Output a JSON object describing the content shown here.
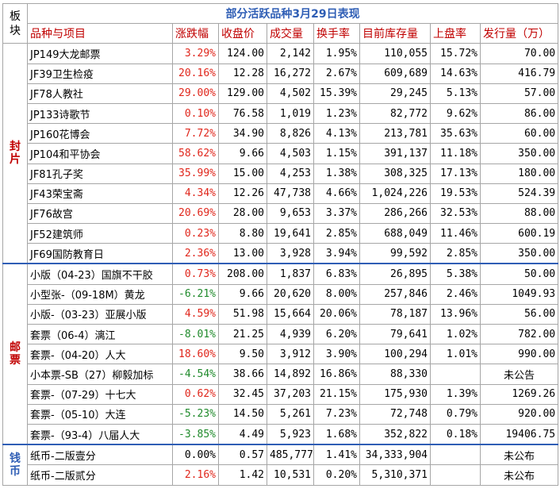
{
  "title": "部分活跃品种3月29日表现",
  "corner_label": [
    "板",
    "块"
  ],
  "headers": [
    "品种与项目",
    "涨跌幅",
    "收盘价",
    "成交量",
    "换手率",
    "目前库存量",
    "上盘率",
    "发行量（万）"
  ],
  "sections": [
    {
      "name": [
        "封",
        "片"
      ],
      "color": "#c00000",
      "rows": [
        {
          "name": "JP149大龙邮票",
          "change": "3.29%",
          "trend": "up",
          "close": "124.00",
          "volume": "2,142",
          "turnover": "1.95%",
          "stock": "110,055",
          "listing": "15.72%",
          "issue": "70.00"
        },
        {
          "name": "JF39卫生检疫",
          "change": "20.16%",
          "trend": "up",
          "close": "12.28",
          "volume": "16,272",
          "turnover": "2.67%",
          "stock": "609,689",
          "listing": "14.63%",
          "issue": "416.79"
        },
        {
          "name": "JF78人教社",
          "change": "29.00%",
          "trend": "up",
          "close": "129.00",
          "volume": "4,502",
          "turnover": "15.39%",
          "stock": "29,245",
          "listing": "5.13%",
          "issue": "57.00"
        },
        {
          "name": "JP133诗歌节",
          "change": "0.10%",
          "trend": "up",
          "close": "76.58",
          "volume": "1,019",
          "turnover": "1.23%",
          "stock": "82,772",
          "listing": "9.62%",
          "issue": "86.00"
        },
        {
          "name": "JP160花博会",
          "change": "7.72%",
          "trend": "up",
          "close": "34.90",
          "volume": "8,826",
          "turnover": "4.13%",
          "stock": "213,781",
          "listing": "35.63%",
          "issue": "60.00"
        },
        {
          "name": "JP104和平协会",
          "change": "58.62%",
          "trend": "up",
          "close": "9.66",
          "volume": "4,503",
          "turnover": "1.15%",
          "stock": "391,137",
          "listing": "11.18%",
          "issue": "350.00"
        },
        {
          "name": "JF81孔子奖",
          "change": "35.99%",
          "trend": "up",
          "close": "15.00",
          "volume": "4,253",
          "turnover": "1.38%",
          "stock": "308,325",
          "listing": "17.13%",
          "issue": "180.00"
        },
        {
          "name": "JF43荣宝斋",
          "change": "4.34%",
          "trend": "up",
          "close": "12.26",
          "volume": "47,738",
          "turnover": "4.66%",
          "stock": "1,024,226",
          "listing": "19.53%",
          "issue": "524.39"
        },
        {
          "name": "JF76故宫",
          "change": "20.69%",
          "trend": "up",
          "close": "28.00",
          "volume": "9,653",
          "turnover": "3.37%",
          "stock": "286,266",
          "listing": "32.53%",
          "issue": "88.00"
        },
        {
          "name": "JF52建筑师",
          "change": "0.23%",
          "trend": "up",
          "close": "8.80",
          "volume": "19,641",
          "turnover": "2.85%",
          "stock": "688,049",
          "listing": "11.46%",
          "issue": "600.19"
        },
        {
          "name": "JF69国防教育日",
          "change": "2.36%",
          "trend": "up",
          "close": "13.00",
          "volume": "3,928",
          "turnover": "3.94%",
          "stock": "99,592",
          "listing": "2.85%",
          "issue": "350.00"
        }
      ]
    },
    {
      "name": [
        "邮",
        "票"
      ],
      "color": "#c00000",
      "rows": [
        {
          "name": "小版（04-23）国旗不干胶",
          "change": "0.73%",
          "trend": "up",
          "close": "208.00",
          "volume": "1,837",
          "turnover": "6.83%",
          "stock": "26,895",
          "listing": "5.38%",
          "issue": "50.00"
        },
        {
          "name": "小型张-（09-18M）黄龙",
          "change": "-6.21%",
          "trend": "down",
          "close": "9.66",
          "volume": "20,620",
          "turnover": "8.00%",
          "stock": "257,846",
          "listing": "2.46%",
          "issue": "1049.93"
        },
        {
          "name": "小版-（03-23）亚展小版",
          "change": "4.59%",
          "trend": "up",
          "close": "51.98",
          "volume": "15,664",
          "turnover": "20.06%",
          "stock": "78,187",
          "listing": "13.96%",
          "issue": "56.00",
          "small": true
        },
        {
          "name": "套票（06-4）漓江",
          "change": "-8.01%",
          "trend": "down",
          "close": "21.25",
          "volume": "4,939",
          "turnover": "6.20%",
          "stock": "79,641",
          "listing": "1.02%",
          "issue": "782.00"
        },
        {
          "name": "套票-（04-20）人大",
          "change": "18.60%",
          "trend": "up",
          "close": "9.50",
          "volume": "3,912",
          "turnover": "3.90%",
          "stock": "100,294",
          "listing": "1.01%",
          "issue": "990.00"
        },
        {
          "name": "小本票-SB（27）柳毅加标",
          "change": "-4.54%",
          "trend": "down",
          "close": "38.66",
          "volume": "14,892",
          "turnover": "16.86%",
          "stock": "88,330",
          "listing": "",
          "issue": "未公告",
          "issue_center": true
        },
        {
          "name": "套票-（07-29）十七大",
          "change": "0.62%",
          "trend": "up",
          "close": "32.45",
          "volume": "37,203",
          "turnover": "21.15%",
          "stock": "175,930",
          "listing": "1.39%",
          "issue": "1269.26"
        },
        {
          "name": "套票-（05-10）大连",
          "change": "-5.23%",
          "trend": "down",
          "close": "14.50",
          "volume": "5,261",
          "turnover": "7.23%",
          "stock": "72,748",
          "listing": "0.79%",
          "issue": "920.00"
        },
        {
          "name": "套票-（93-4）八届人大",
          "change": "-3.85%",
          "trend": "down",
          "close": "4.49",
          "volume": "5,923",
          "turnover": "1.68%",
          "stock": "352,822",
          "listing": "0.18%",
          "issue": "19406.75"
        }
      ]
    },
    {
      "name": [
        "钱",
        "币"
      ],
      "color": "#2f5eb5",
      "rows": [
        {
          "name": "纸币-二版壹分",
          "change": "0.00%",
          "trend": "flat",
          "close": "0.57",
          "volume": "485,777",
          "turnover": "1.41%",
          "stock": "34,333,904",
          "listing": "",
          "issue": "未公布",
          "issue_center": true
        },
        {
          "name": "纸币-二版贰分",
          "change": "2.16%",
          "trend": "up",
          "close": "1.42",
          "volume": "10,531",
          "turnover": "0.20%",
          "stock": "5,310,371",
          "listing": "",
          "issue": "未公布",
          "issue_center": true
        }
      ]
    }
  ]
}
